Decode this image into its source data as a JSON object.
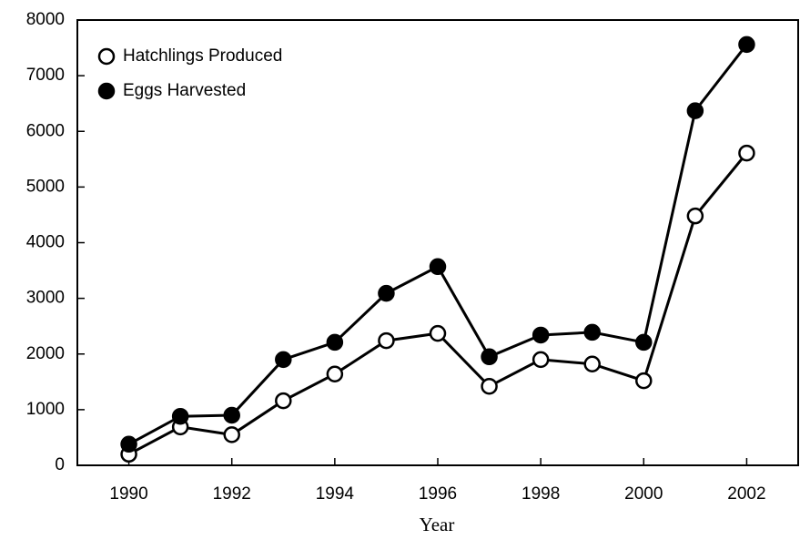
{
  "chart_data": {
    "type": "line",
    "x_label": "Year",
    "x": [
      1990,
      1991,
      1992,
      1993,
      1994,
      1995,
      1996,
      1997,
      1998,
      1999,
      2000,
      2001,
      2002
    ],
    "series": [
      {
        "name": "Hatchlings Produced",
        "color": "#000000",
        "marker_fill": "#ffffff",
        "values": [
          200,
          690,
          550,
          1160,
          1640,
          2240,
          2370,
          1420,
          1900,
          1820,
          1520,
          4480,
          5610
        ]
      },
      {
        "name": "Eggs Harvested",
        "color": "#000000",
        "marker_fill": "#000000",
        "values": [
          380,
          880,
          900,
          1900,
          2210,
          3090,
          3570,
          1950,
          2340,
          2390,
          2210,
          6370,
          7560
        ]
      }
    ],
    "xlim": [
      1989,
      2003
    ],
    "xticks": [
      1990,
      1992,
      1994,
      1996,
      1998,
      2000,
      2002
    ],
    "ylim": [
      0,
      8000
    ],
    "yticks": [
      0,
      1000,
      2000,
      3000,
      4000,
      5000,
      6000,
      7000,
      8000
    ],
    "legend": "upper-left"
  }
}
